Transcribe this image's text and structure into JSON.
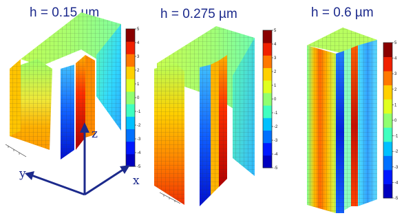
{
  "panels": [
    {
      "title": "h = 0.15 µm"
    },
    {
      "title": "h = 0.275 µm"
    },
    {
      "title": "h = 0.6 µm"
    }
  ],
  "colorbar": {
    "ticks": [
      "5",
      "4",
      "3",
      "2",
      "1",
      "0",
      "-1",
      "-2",
      "-3",
      "-4",
      "-5"
    ],
    "colors": [
      "#0000bf",
      "#0018ff",
      "#0070ff",
      "#00c0ff",
      "#40ffc0",
      "#90ff70",
      "#e0ff20",
      "#ffd000",
      "#ff7800",
      "#f02000",
      "#8a0000"
    ]
  },
  "axes": {
    "x": "x",
    "y": "y",
    "z": "z"
  }
}
